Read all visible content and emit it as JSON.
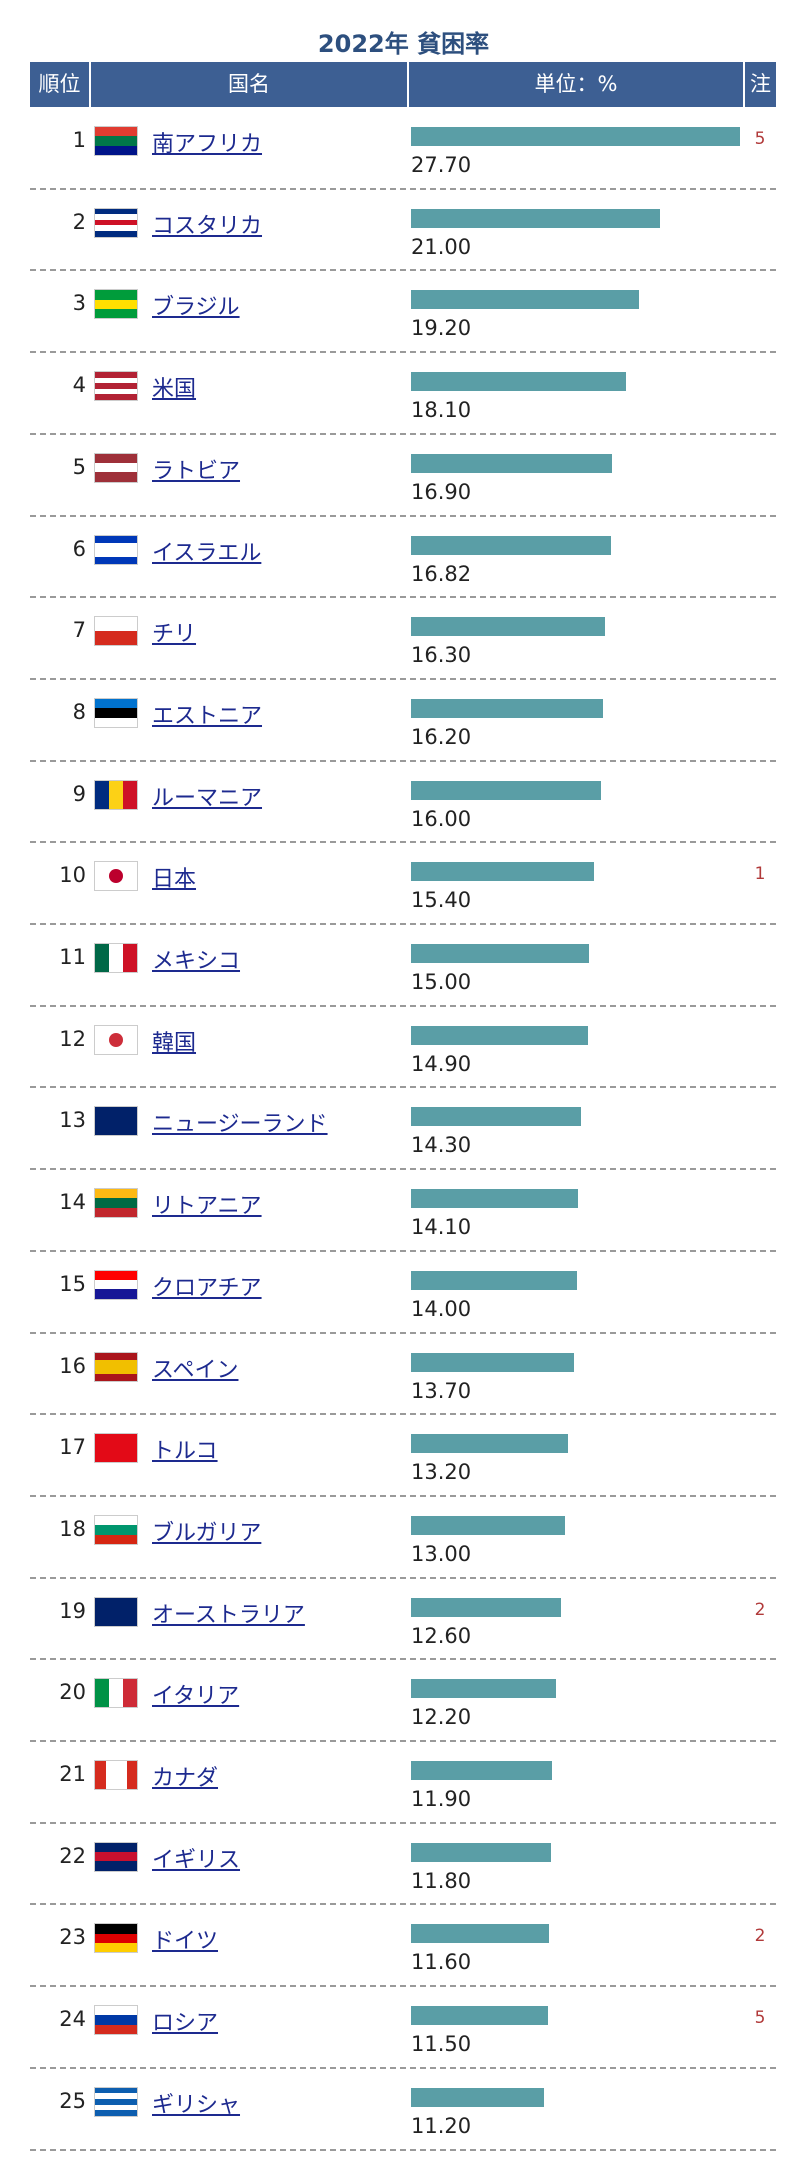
{
  "title": "2022年 貧困率",
  "table": {
    "headers": [
      "順位",
      "国名",
      "単位：%",
      "注"
    ],
    "rows": [
      {
        "rank": 1,
        "country": "南アフリカ",
        "value": 27.7,
        "value_label": "27.70",
        "note": "5"
      },
      {
        "rank": 2,
        "country": "コスタリカ",
        "value": 21.0,
        "value_label": "21.00"
      },
      {
        "rank": 3,
        "country": "ブラジル",
        "value": 19.2,
        "value_label": "19.20"
      },
      {
        "rank": 4,
        "country": "米国",
        "value": 18.1,
        "value_label": "18.10"
      },
      {
        "rank": 5,
        "country": "ラトビア",
        "value": 16.9,
        "value_label": "16.90"
      },
      {
        "rank": 6,
        "country": "イスラエル",
        "value": 16.82,
        "value_label": "16.82"
      },
      {
        "rank": 7,
        "country": "チリ",
        "value": 16.3,
        "value_label": "16.30"
      },
      {
        "rank": 8,
        "country": "エストニア",
        "value": 16.2,
        "value_label": "16.20"
      },
      {
        "rank": 9,
        "country": "ルーマニア",
        "value": 16.0,
        "value_label": "16.00"
      },
      {
        "rank": 10,
        "country": "日本",
        "value": 15.4,
        "value_label": "15.40",
        "note": "1"
      },
      {
        "rank": 11,
        "country": "メキシコ",
        "value": 15.0,
        "value_label": "15.00"
      },
      {
        "rank": 12,
        "country": "韓国",
        "value": 14.9,
        "value_label": "14.90"
      },
      {
        "rank": 13,
        "country": "ニュージーランド",
        "value": 14.3,
        "value_label": "14.30"
      },
      {
        "rank": 14,
        "country": "リトアニア",
        "value": 14.1,
        "value_label": "14.10"
      },
      {
        "rank": 15,
        "country": "クロアチア",
        "value": 14.0,
        "value_label": "14.00"
      },
      {
        "rank": 16,
        "country": "スペイン",
        "value": 13.7,
        "value_label": "13.70"
      },
      {
        "rank": 17,
        "country": "トルコ",
        "value": 13.2,
        "value_label": "13.20"
      },
      {
        "rank": 18,
        "country": "ブルガリア",
        "value": 13.0,
        "value_label": "13.00"
      },
      {
        "rank": 19,
        "country": "オーストラリア",
        "value": 12.6,
        "value_label": "12.60",
        "note": "2"
      },
      {
        "rank": 20,
        "country": "イタリア",
        "value": 12.2,
        "value_label": "12.20"
      },
      {
        "rank": 21,
        "country": "カナダ",
        "value": 11.9,
        "value_label": "11.90"
      },
      {
        "rank": 22,
        "country": "イギリス",
        "value": 11.8,
        "value_label": "11.80"
      },
      {
        "rank": 23,
        "country": "ドイツ",
        "value": 11.6,
        "value_label": "11.60",
        "note": "2"
      },
      {
        "rank": 24,
        "country": "ロシア",
        "value": 11.5,
        "value_label": "11.50",
        "note": "5"
      },
      {
        "rank": 25,
        "country": "ギリシャ",
        "value": 11.2,
        "value_label": "11.20"
      }
    ]
  }
}
